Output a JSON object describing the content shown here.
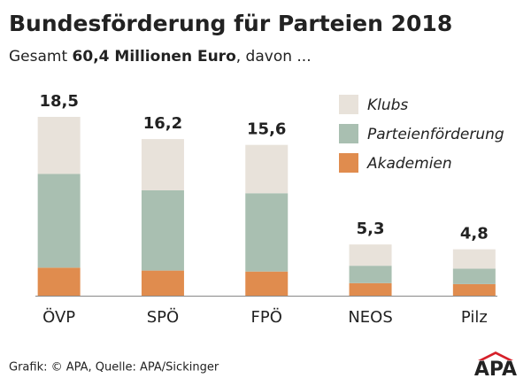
{
  "chart_data": {
    "type": "stacked-bar",
    "title": "Bundesförderung für Parteien 2018",
    "subtitle": {
      "prefix": "Gesamt",
      "highlight": "60,4 Millionen Euro",
      "suffix": ", davon ..."
    },
    "categories": [
      "ÖVP",
      "SPÖ",
      "FPÖ",
      "NEOS",
      "Pilz"
    ],
    "series": [
      {
        "name": "Akademien",
        "color": "#e08c4e",
        "values": [
          2.9,
          2.6,
          2.5,
          1.3,
          1.2
        ]
      },
      {
        "name": "Parteienförderung",
        "color": "#a9bfb1",
        "values": [
          9.7,
          8.3,
          8.1,
          1.8,
          1.6
        ]
      },
      {
        "name": "Klubs",
        "color": "#e8e2da",
        "values": [
          5.9,
          5.3,
          5.0,
          2.2,
          2.0
        ]
      }
    ],
    "totals": {
      "values": [
        18.5,
        16.2,
        15.6,
        5.3,
        4.8
      ],
      "value_labels": [
        "18,5",
        "16,2",
        "15,6",
        "5,3",
        "4,8"
      ]
    },
    "source": "Grafik: © APA, Quelle: APA/Sickinger",
    "logo": "APA"
  }
}
